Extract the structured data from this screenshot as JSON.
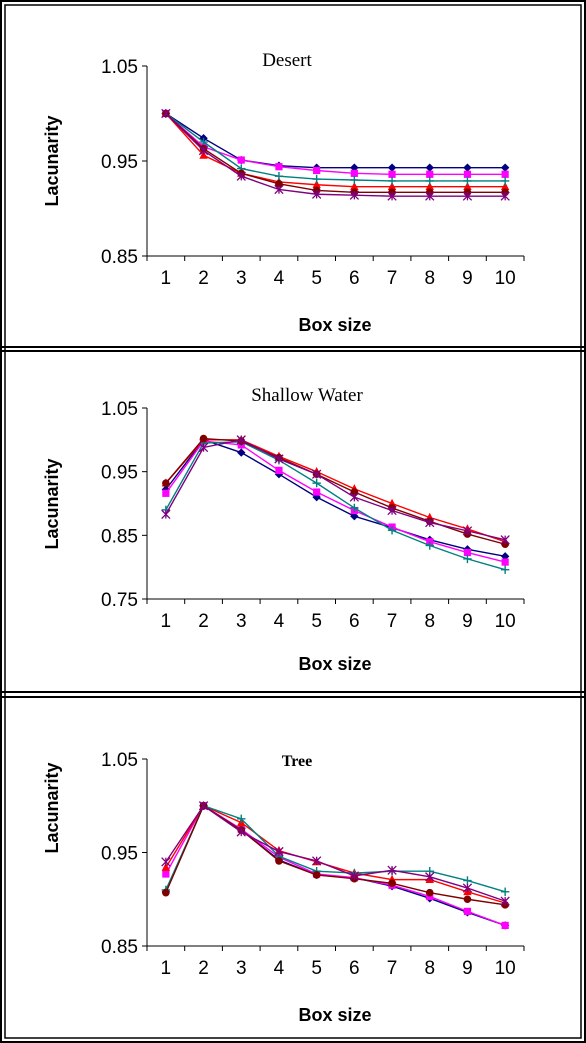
{
  "chart_data": [
    {
      "type": "line",
      "title": "Desert",
      "xlabel": "Box size",
      "ylabel": "Lacunarity",
      "x": [
        1,
        2,
        3,
        4,
        5,
        6,
        7,
        8,
        9,
        10
      ],
      "xticks": [
        "1",
        "2",
        "3",
        "4",
        "5",
        "6",
        "7",
        "8",
        "9",
        "10"
      ],
      "ylim": [
        0.85,
        1.05
      ],
      "yticks": [
        "0.85",
        "0.95",
        "1.05"
      ],
      "grid": false,
      "legend": "none",
      "series": [
        {
          "color": "#000080",
          "marker": "diamond",
          "values": [
            1.0,
            0.974,
            0.951,
            0.945,
            0.943,
            0.943,
            0.943,
            0.943,
            0.943,
            0.943
          ]
        },
        {
          "color": "#ff00ff",
          "marker": "square",
          "values": [
            1.0,
            0.965,
            0.951,
            0.944,
            0.94,
            0.937,
            0.936,
            0.936,
            0.936,
            0.936
          ]
        },
        {
          "color": "#ff0000",
          "marker": "triangle",
          "values": [
            1.0,
            0.956,
            0.937,
            0.928,
            0.925,
            0.923,
            0.923,
            0.923,
            0.923,
            0.923
          ]
        },
        {
          "color": "#008080",
          "marker": "plus",
          "values": [
            1.0,
            0.97,
            0.942,
            0.934,
            0.931,
            0.93,
            0.929,
            0.929,
            0.929,
            0.929
          ]
        },
        {
          "color": "#800000",
          "marker": "circle",
          "values": [
            1.0,
            0.963,
            0.937,
            0.926,
            0.919,
            0.917,
            0.917,
            0.917,
            0.917,
            0.917
          ]
        },
        {
          "color": "#800080",
          "marker": "star",
          "values": [
            1.0,
            0.961,
            0.934,
            0.92,
            0.915,
            0.914,
            0.913,
            0.913,
            0.913,
            0.913
          ]
        }
      ]
    },
    {
      "type": "line",
      "title": "Shallow Water",
      "xlabel": "Box size",
      "ylabel": "Lacunarity",
      "x": [
        1,
        2,
        3,
        4,
        5,
        6,
        7,
        8,
        9,
        10
      ],
      "xticks": [
        "1",
        "2",
        "3",
        "4",
        "5",
        "6",
        "7",
        "8",
        "9",
        "10"
      ],
      "ylim": [
        0.75,
        1.05
      ],
      "yticks": [
        "0.75",
        "0.85",
        "0.95",
        "1.05"
      ],
      "grid": false,
      "legend": "none",
      "series": [
        {
          "color": "#000080",
          "marker": "diamond",
          "values": [
            0.922,
            1.0,
            0.98,
            0.946,
            0.91,
            0.88,
            0.862,
            0.843,
            0.828,
            0.817
          ]
        },
        {
          "color": "#ff00ff",
          "marker": "square",
          "values": [
            0.916,
            0.998,
            0.992,
            0.952,
            0.918,
            0.889,
            0.863,
            0.84,
            0.823,
            0.808
          ]
        },
        {
          "color": "#ff0000",
          "marker": "triangle",
          "values": [
            0.932,
            1.0,
            1.0,
            0.974,
            0.95,
            0.923,
            0.9,
            0.878,
            0.86,
            0.84
          ]
        },
        {
          "color": "#008080",
          "marker": "plus",
          "values": [
            0.89,
            0.995,
            0.997,
            0.968,
            0.932,
            0.893,
            0.858,
            0.834,
            0.813,
            0.796
          ]
        },
        {
          "color": "#800000",
          "marker": "circle",
          "values": [
            0.932,
            1.002,
            0.998,
            0.972,
            0.946,
            0.918,
            0.893,
            0.872,
            0.852,
            0.836
          ]
        },
        {
          "color": "#800080",
          "marker": "star",
          "values": [
            0.883,
            0.988,
            1.0,
            0.97,
            0.946,
            0.91,
            0.889,
            0.87,
            0.857,
            0.843
          ]
        }
      ]
    },
    {
      "type": "line",
      "title": "Tree",
      "xlabel": "Box size",
      "ylabel": "Lacunarity",
      "x": [
        1,
        2,
        3,
        4,
        5,
        6,
        7,
        8,
        9,
        10
      ],
      "xticks": [
        "1",
        "2",
        "3",
        "4",
        "5",
        "6",
        "7",
        "8",
        "9",
        "10"
      ],
      "ylim": [
        0.85,
        1.05
      ],
      "yticks": [
        "0.85",
        "0.95",
        "1.05"
      ],
      "grid": false,
      "legend": "none",
      "series": [
        {
          "color": "#000080",
          "marker": "diamond",
          "values": [
            0.908,
            1.0,
            0.974,
            0.942,
            0.926,
            0.923,
            0.914,
            0.901,
            0.886,
            0.872
          ]
        },
        {
          "color": "#ff00ff",
          "marker": "square",
          "values": [
            0.927,
            1.0,
            0.975,
            0.945,
            0.927,
            0.923,
            0.915,
            0.903,
            0.887,
            0.872
          ]
        },
        {
          "color": "#ff0000",
          "marker": "triangle",
          "values": [
            0.934,
            1.0,
            0.982,
            0.952,
            0.94,
            0.928,
            0.921,
            0.921,
            0.908,
            0.896
          ]
        },
        {
          "color": "#008080",
          "marker": "plus",
          "values": [
            0.91,
            1.0,
            0.986,
            0.946,
            0.93,
            0.928,
            0.93,
            0.93,
            0.92,
            0.908
          ]
        },
        {
          "color": "#800000",
          "marker": "circle",
          "values": [
            0.907,
            1.0,
            0.974,
            0.941,
            0.926,
            0.922,
            0.917,
            0.907,
            0.9,
            0.894
          ]
        },
        {
          "color": "#800080",
          "marker": "star",
          "values": [
            0.94,
            1.0,
            0.972,
            0.951,
            0.941,
            0.925,
            0.931,
            0.924,
            0.912,
            0.898
          ]
        }
      ]
    }
  ]
}
